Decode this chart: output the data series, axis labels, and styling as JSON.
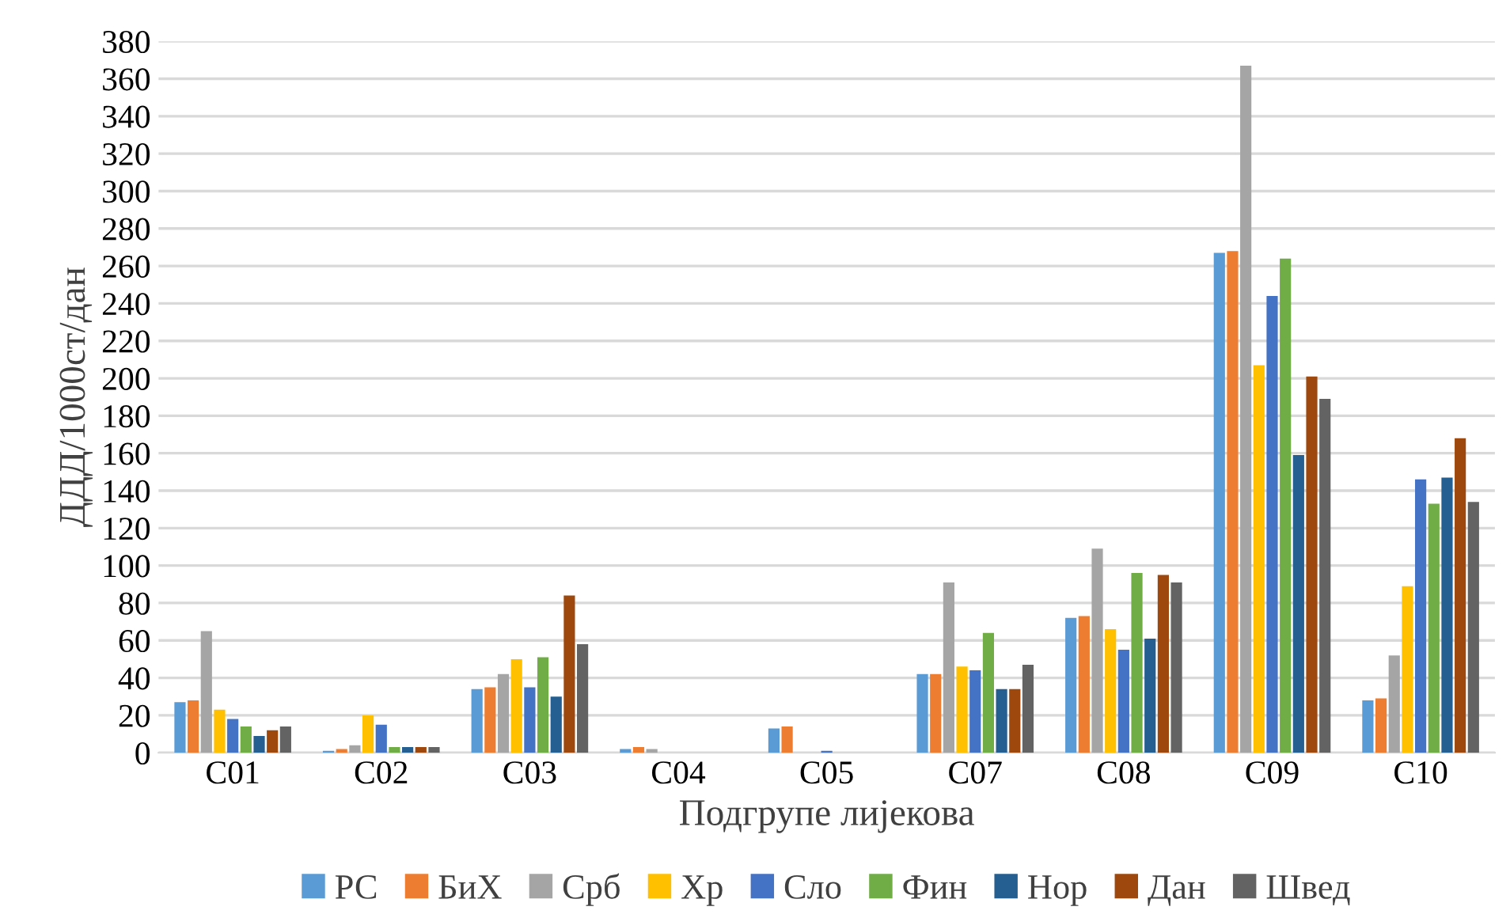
{
  "chart_data": {
    "type": "bar",
    "xlabel": "Подгрупе лијекова",
    "ylabel": "ДДД/1000ст/дан",
    "categories": [
      "C01",
      "C02",
      "C03",
      "C04",
      "C05",
      "C07",
      "C08",
      "C09",
      "C10"
    ],
    "series": [
      {
        "name": "РС",
        "color": "#5b9bd5",
        "values": [
          27,
          1,
          34,
          2,
          13,
          42,
          72,
          267,
          28
        ]
      },
      {
        "name": "БиХ",
        "color": "#ed7d31",
        "values": [
          28,
          2,
          35,
          3,
          14,
          42,
          73,
          268,
          29
        ]
      },
      {
        "name": "Срб",
        "color": "#a5a5a5",
        "values": [
          65,
          4,
          42,
          2,
          0,
          91,
          109,
          367,
          52
        ]
      },
      {
        "name": "Хр",
        "color": "#ffc000",
        "values": [
          23,
          20,
          50,
          0,
          0,
          46,
          66,
          207,
          89
        ]
      },
      {
        "name": "Сло",
        "color": "#4472c4",
        "values": [
          18,
          15,
          35,
          0,
          1,
          44,
          55,
          244,
          146
        ]
      },
      {
        "name": "Фин",
        "color": "#70ad47",
        "values": [
          14,
          3,
          51,
          0,
          0,
          64,
          96,
          264,
          133
        ]
      },
      {
        "name": "Нор",
        "color": "#255e91",
        "values": [
          9,
          3,
          30,
          0,
          0,
          34,
          61,
          159,
          147
        ]
      },
      {
        "name": "Дан",
        "color": "#9e480e",
        "values": [
          12,
          3,
          84,
          0,
          0,
          34,
          95,
          201,
          168
        ]
      },
      {
        "name": "Швед",
        "color": "#636363",
        "values": [
          14,
          3,
          58,
          0,
          0,
          47,
          91,
          189,
          134
        ]
      }
    ],
    "ylim": [
      0,
      380
    ],
    "yticks": [
      0,
      20,
      40,
      60,
      80,
      100,
      120,
      140,
      160,
      180,
      200,
      220,
      240,
      260,
      280,
      300,
      320,
      340,
      360,
      380
    ],
    "grid": "y",
    "legend": "bottom"
  }
}
